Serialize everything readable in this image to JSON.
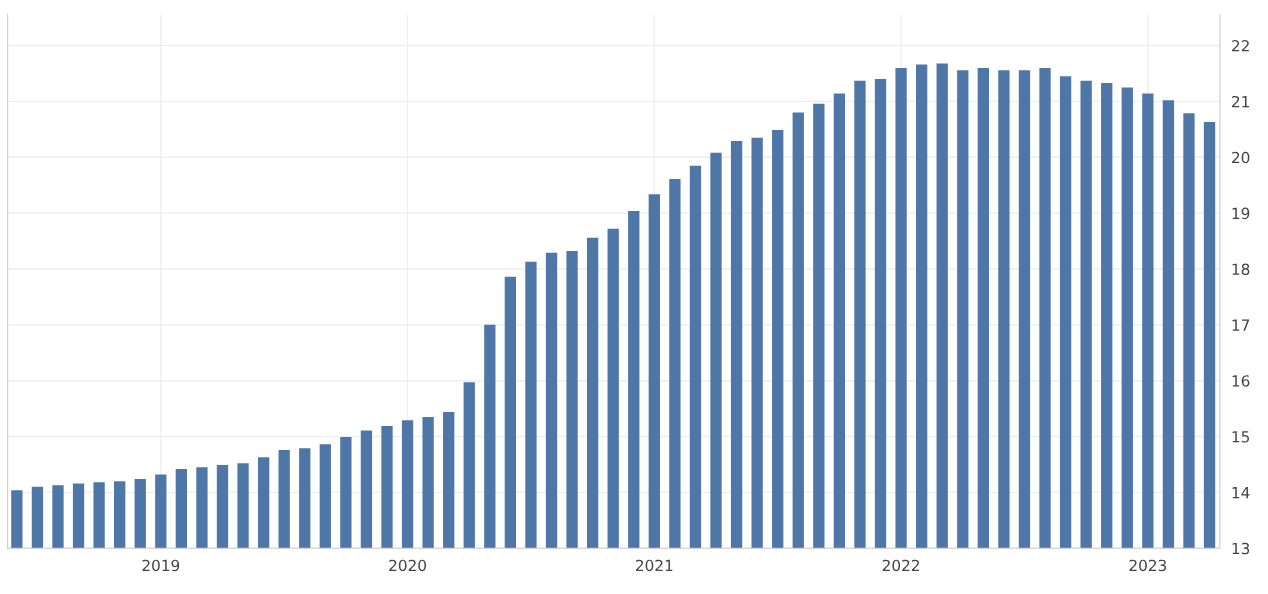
{
  "chart_data": {
    "type": "bar",
    "color": "#4e77a8",
    "categories": [
      null,
      null,
      null,
      null,
      null,
      null,
      null,
      "2019",
      null,
      null,
      null,
      null,
      null,
      null,
      null,
      null,
      null,
      null,
      null,
      "2020",
      null,
      null,
      null,
      null,
      null,
      null,
      null,
      null,
      null,
      null,
      null,
      "2021",
      null,
      null,
      null,
      null,
      null,
      null,
      null,
      null,
      null,
      null,
      null,
      "2022",
      null,
      null,
      null,
      null,
      null,
      null,
      null,
      null,
      null,
      null,
      null,
      "2023",
      null,
      null,
      null
    ],
    "values": [
      14.04,
      14.1,
      14.13,
      14.16,
      14.18,
      14.2,
      14.24,
      14.32,
      14.42,
      14.45,
      14.49,
      14.52,
      14.63,
      14.76,
      14.79,
      14.86,
      14.99,
      15.11,
      15.19,
      15.29,
      15.35,
      15.44,
      15.97,
      17.0,
      17.86,
      18.13,
      18.29,
      18.32,
      18.56,
      18.72,
      19.04,
      19.34,
      19.61,
      19.85,
      20.08,
      20.29,
      20.35,
      20.49,
      20.8,
      20.96,
      21.14,
      21.37,
      21.4,
      21.6,
      21.66,
      21.68,
      21.56,
      21.6,
      21.56,
      21.56,
      21.6,
      21.45,
      21.37,
      21.33,
      21.25,
      21.14,
      21.02,
      20.79,
      20.63
    ],
    "ylim": [
      13,
      22.55
    ],
    "yticks": [
      13,
      14,
      15,
      16,
      17,
      18,
      19,
      20,
      21,
      22
    ],
    "grid": true
  }
}
